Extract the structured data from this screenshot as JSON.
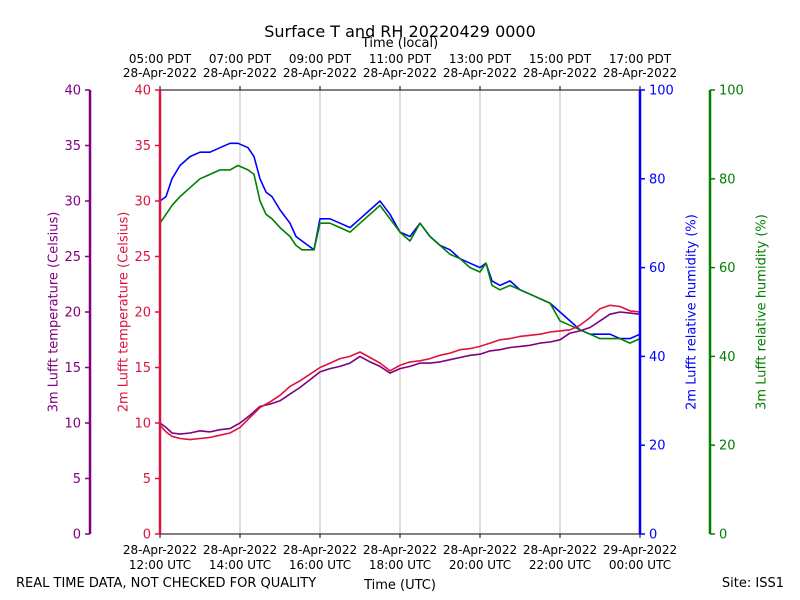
{
  "chart_data": {
    "type": "line",
    "title": "Surface T and RH 20220429 0000",
    "top_axis_label": "Time (local)",
    "xlabel": "Time (UTC)",
    "x_range_hours_utc": [
      12,
      24
    ],
    "bottom_ticks": [
      {
        "hour": 12,
        "date": "28-Apr-2022",
        "time": "12:00 UTC"
      },
      {
        "hour": 14,
        "date": "28-Apr-2022",
        "time": "14:00 UTC"
      },
      {
        "hour": 16,
        "date": "28-Apr-2022",
        "time": "16:00 UTC"
      },
      {
        "hour": 18,
        "date": "28-Apr-2022",
        "time": "18:00 UTC"
      },
      {
        "hour": 20,
        "date": "28-Apr-2022",
        "time": "20:00 UTC"
      },
      {
        "hour": 22,
        "date": "28-Apr-2022",
        "time": "22:00 UTC"
      },
      {
        "hour": 24,
        "date": "29-Apr-2022",
        "time": "00:00 UTC"
      }
    ],
    "top_ticks": [
      {
        "hour": 12,
        "time": "05:00 PDT",
        "date": "28-Apr-2022"
      },
      {
        "hour": 14,
        "time": "07:00 PDT",
        "date": "28-Apr-2022"
      },
      {
        "hour": 16,
        "time": "09:00 PDT",
        "date": "28-Apr-2022"
      },
      {
        "hour": 18,
        "time": "11:00 PDT",
        "date": "28-Apr-2022"
      },
      {
        "hour": 20,
        "time": "13:00 PDT",
        "date": "28-Apr-2022"
      },
      {
        "hour": 22,
        "time": "15:00 PDT",
        "date": "28-Apr-2022"
      },
      {
        "hour": 24,
        "time": "17:00 PDT",
        "date": "28-Apr-2022"
      }
    ],
    "axes": [
      {
        "id": "t3m",
        "label": "3m Lufft temperature (Celsius)",
        "color": "#800080",
        "ylim": [
          0,
          40
        ],
        "ticks": [
          0,
          5,
          10,
          15,
          20,
          25,
          30,
          35,
          40
        ]
      },
      {
        "id": "t2m",
        "label": "2m Lufft temperature (Celsius)",
        "color": "#dc143c",
        "ylim": [
          0,
          40
        ],
        "ticks": [
          0,
          5,
          10,
          15,
          20,
          25,
          30,
          35,
          40
        ]
      },
      {
        "id": "rh2m",
        "label": "2m Lufft relative humidity (%)",
        "color": "#0000ff",
        "ylim": [
          0,
          100
        ],
        "ticks": [
          0,
          20,
          40,
          60,
          80,
          100
        ]
      },
      {
        "id": "rh3m",
        "label": "3m Lufft relative humidity (%)",
        "color": "#008000",
        "ylim": [
          0,
          100
        ],
        "ticks": [
          0,
          20,
          40,
          60,
          80,
          100
        ]
      }
    ],
    "grid": "vertical",
    "series": [
      {
        "name": "2m Lufft relative humidity (%)",
        "axis": "rh2m",
        "color": "#0000ff",
        "x": [
          12.0,
          12.15,
          12.3,
          12.5,
          12.75,
          13.0,
          13.25,
          13.5,
          13.75,
          13.95,
          14.2,
          14.35,
          14.5,
          14.65,
          14.8,
          15.0,
          15.25,
          15.4,
          15.55,
          15.7,
          15.85,
          16.0,
          16.25,
          16.5,
          16.75,
          17.0,
          17.25,
          17.5,
          17.75,
          18.0,
          18.25,
          18.5,
          18.75,
          19.0,
          19.25,
          19.5,
          19.75,
          20.0,
          20.15,
          20.3,
          20.5,
          20.75,
          21.0,
          21.25,
          21.5,
          21.75,
          22.0,
          22.25,
          22.5,
          22.75,
          23.0,
          23.25,
          23.5,
          23.75,
          24.0
        ],
        "y": [
          75,
          76,
          80,
          83,
          85,
          86,
          86,
          87,
          88,
          88,
          87,
          85,
          80,
          77,
          76,
          73,
          70,
          67,
          66,
          65,
          64,
          71,
          71,
          70,
          69,
          71,
          73,
          75,
          72,
          68,
          67,
          70,
          67,
          65,
          64,
          62,
          61,
          60,
          61,
          57,
          56,
          57,
          55,
          54,
          53,
          52,
          50,
          48,
          46,
          45,
          45,
          45,
          44,
          44,
          45
        ]
      },
      {
        "name": "3m Lufft relative humidity (%)",
        "axis": "rh3m",
        "color": "#008000",
        "x": [
          12.0,
          12.15,
          12.3,
          12.5,
          12.75,
          13.0,
          13.25,
          13.5,
          13.75,
          13.95,
          14.2,
          14.35,
          14.5,
          14.65,
          14.8,
          15.0,
          15.25,
          15.4,
          15.55,
          15.7,
          15.85,
          16.0,
          16.25,
          16.5,
          16.75,
          17.0,
          17.25,
          17.5,
          17.75,
          18.0,
          18.25,
          18.5,
          18.75,
          19.0,
          19.25,
          19.5,
          19.75,
          20.0,
          20.15,
          20.3,
          20.5,
          20.75,
          21.0,
          21.25,
          21.5,
          21.75,
          22.0,
          22.25,
          22.5,
          22.75,
          23.0,
          23.25,
          23.5,
          23.75,
          24.0
        ],
        "y": [
          70,
          72,
          74,
          76,
          78,
          80,
          81,
          82,
          82,
          83,
          82,
          81,
          75,
          72,
          71,
          69,
          67,
          65,
          64,
          64,
          64,
          70,
          70,
          69,
          68,
          70,
          72,
          74,
          71,
          68,
          66,
          70,
          67,
          65,
          63,
          62,
          60,
          59,
          61,
          56,
          55,
          56,
          55,
          54,
          53,
          52,
          48,
          47,
          46,
          45,
          44,
          44,
          44,
          43,
          44
        ]
      },
      {
        "name": "3m Lufft temperature (Celsius)",
        "axis": "t3m",
        "color": "#800080",
        "x": [
          12.0,
          12.15,
          12.3,
          12.5,
          12.75,
          13.0,
          13.25,
          13.5,
          13.75,
          14.0,
          14.25,
          14.5,
          14.75,
          15.0,
          15.25,
          15.5,
          15.75,
          16.0,
          16.25,
          16.5,
          16.75,
          17.0,
          17.25,
          17.5,
          17.75,
          18.0,
          18.25,
          18.5,
          18.75,
          19.0,
          19.25,
          19.5,
          19.75,
          20.0,
          20.25,
          20.5,
          20.75,
          21.0,
          21.25,
          21.5,
          21.75,
          22.0,
          22.25,
          22.5,
          22.75,
          23.0,
          23.25,
          23.5,
          23.75,
          24.0
        ],
        "y": [
          10.0,
          9.6,
          9.1,
          9.0,
          9.1,
          9.3,
          9.2,
          9.4,
          9.5,
          10.0,
          10.7,
          11.5,
          11.7,
          12.0,
          12.6,
          13.2,
          13.9,
          14.6,
          14.9,
          15.1,
          15.4,
          16.0,
          15.5,
          15.1,
          14.5,
          14.9,
          15.1,
          15.4,
          15.4,
          15.5,
          15.7,
          15.9,
          16.1,
          16.2,
          16.5,
          16.6,
          16.8,
          16.9,
          17.0,
          17.2,
          17.3,
          17.5,
          18.1,
          18.3,
          18.6,
          19.2,
          19.8,
          20.0,
          19.9,
          19.8
        ]
      },
      {
        "name": "2m Lufft temperature (Celsius)",
        "axis": "t2m",
        "color": "#dc143c",
        "x": [
          12.0,
          12.15,
          12.3,
          12.5,
          12.75,
          13.0,
          13.25,
          13.5,
          13.75,
          14.0,
          14.25,
          14.5,
          14.75,
          15.0,
          15.25,
          15.5,
          15.75,
          16.0,
          16.25,
          16.5,
          16.75,
          17.0,
          17.25,
          17.5,
          17.75,
          18.0,
          18.25,
          18.5,
          18.75,
          19.0,
          19.25,
          19.5,
          19.75,
          20.0,
          20.25,
          20.5,
          20.75,
          21.0,
          21.25,
          21.5,
          21.75,
          22.0,
          22.25,
          22.5,
          22.75,
          23.0,
          23.25,
          23.5,
          23.75,
          24.0
        ],
        "y": [
          9.8,
          9.2,
          8.8,
          8.6,
          8.5,
          8.6,
          8.7,
          8.9,
          9.1,
          9.6,
          10.5,
          11.4,
          11.9,
          12.5,
          13.3,
          13.8,
          14.4,
          15.0,
          15.4,
          15.8,
          16.0,
          16.4,
          15.9,
          15.4,
          14.7,
          15.2,
          15.5,
          15.6,
          15.8,
          16.1,
          16.3,
          16.6,
          16.7,
          16.9,
          17.2,
          17.5,
          17.6,
          17.8,
          17.9,
          18.0,
          18.2,
          18.3,
          18.4,
          18.8,
          19.5,
          20.3,
          20.6,
          20.5,
          20.1,
          20.0
        ]
      }
    ]
  },
  "footer": {
    "left_text": "REAL TIME DATA, NOT CHECKED FOR QUALITY",
    "right_text": "Site: ISS1"
  }
}
